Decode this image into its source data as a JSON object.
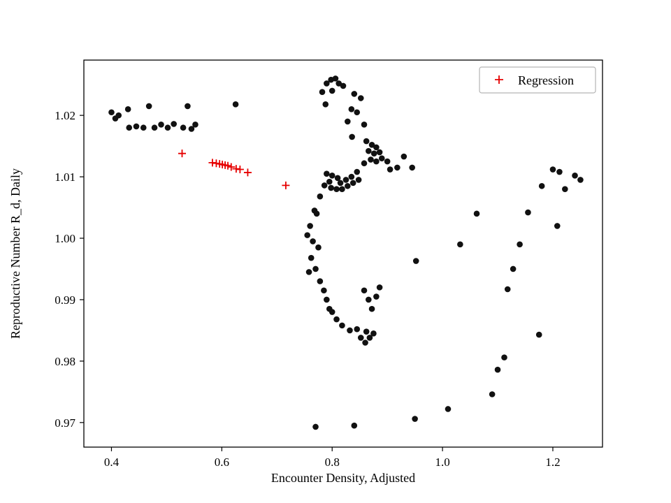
{
  "chart_data": {
    "type": "scatter",
    "title": "",
    "xlabel": "Encounter Density, Adjusted",
    "ylabel": "Reproductive Number R_d, Daily",
    "xlim": [
      0.35,
      1.29
    ],
    "ylim": [
      0.966,
      1.029
    ],
    "grid": false,
    "x_ticks": [
      0.4,
      0.6,
      0.8,
      1.0,
      1.2
    ],
    "x_tick_labels": [
      "0.4",
      "0.6",
      "0.8",
      "1.0",
      "1.2"
    ],
    "y_ticks": [
      0.97,
      0.98,
      0.99,
      1.0,
      1.01,
      1.02
    ],
    "y_tick_labels": [
      "0.97",
      "0.98",
      "0.99",
      "1.00",
      "1.01",
      "1.02"
    ],
    "legend": {
      "position": "upper right",
      "entries": [
        {
          "label": "Regression",
          "marker": "plus",
          "color": "#e60000"
        }
      ]
    },
    "colors": {
      "scatter": "#111111",
      "regression": "#e60000",
      "axis": "#000000",
      "legend_border": "#b3b3b3"
    },
    "series": [
      {
        "name": "data",
        "marker": "circle",
        "color": "#111111",
        "points": [
          [
            0.4,
            1.0205
          ],
          [
            0.407,
            1.0195
          ],
          [
            0.413,
            1.02
          ],
          [
            0.43,
            1.021
          ],
          [
            0.432,
            1.018
          ],
          [
            0.445,
            1.0182
          ],
          [
            0.458,
            1.018
          ],
          [
            0.468,
            1.0215
          ],
          [
            0.478,
            1.018
          ],
          [
            0.49,
            1.0185
          ],
          [
            0.502,
            1.018
          ],
          [
            0.513,
            1.0186
          ],
          [
            0.53,
            1.018
          ],
          [
            0.538,
            1.0215
          ],
          [
            0.545,
            1.0178
          ],
          [
            0.552,
            1.0185
          ],
          [
            0.625,
            1.0218
          ],
          [
            0.782,
            1.0238
          ],
          [
            0.788,
            1.0218
          ],
          [
            0.79,
            1.0252
          ],
          [
            0.798,
            1.0258
          ],
          [
            0.806,
            1.026
          ],
          [
            0.812,
            1.0252
          ],
          [
            0.8,
            1.024
          ],
          [
            0.82,
            1.0248
          ],
          [
            0.84,
            1.0235
          ],
          [
            0.852,
            1.0228
          ],
          [
            0.835,
            1.021
          ],
          [
            0.845,
            1.0205
          ],
          [
            0.828,
            1.019
          ],
          [
            0.858,
            1.0185
          ],
          [
            0.836,
            1.0165
          ],
          [
            0.862,
            1.0158
          ],
          [
            0.872,
            1.0152
          ],
          [
            0.88,
            1.0148
          ],
          [
            0.866,
            1.0142
          ],
          [
            0.876,
            1.0138
          ],
          [
            0.886,
            1.014
          ],
          [
            0.87,
            1.0128
          ],
          [
            0.88,
            1.0125
          ],
          [
            0.89,
            1.013
          ],
          [
            0.9,
            1.0125
          ],
          [
            0.858,
            1.0122
          ],
          [
            0.918,
            1.0115
          ],
          [
            0.905,
            1.0112
          ],
          [
            0.93,
            1.0133
          ],
          [
            0.945,
            1.0115
          ],
          [
            0.79,
            1.0105
          ],
          [
            0.8,
            1.0102
          ],
          [
            0.81,
            1.0098
          ],
          [
            0.795,
            1.0092
          ],
          [
            0.786,
            1.0086
          ],
          [
            0.798,
            1.0082
          ],
          [
            0.808,
            1.008
          ],
          [
            0.818,
            1.008
          ],
          [
            0.828,
            1.0085
          ],
          [
            0.838,
            1.009
          ],
          [
            0.848,
            1.0095
          ],
          [
            0.825,
            1.0095
          ],
          [
            0.835,
            1.01
          ],
          [
            0.815,
            1.009
          ],
          [
            0.845,
            1.0108
          ],
          [
            0.778,
            1.0068
          ],
          [
            0.768,
            1.0045
          ],
          [
            0.772,
            1.004
          ],
          [
            0.76,
            1.002
          ],
          [
            0.755,
            1.0005
          ],
          [
            0.765,
            0.9995
          ],
          [
            0.775,
            0.9985
          ],
          [
            0.762,
            0.9968
          ],
          [
            0.758,
            0.9945
          ],
          [
            0.77,
            0.995
          ],
          [
            0.778,
            0.993
          ],
          [
            0.785,
            0.9915
          ],
          [
            0.79,
            0.99
          ],
          [
            0.795,
            0.9885
          ],
          [
            0.8,
            0.988
          ],
          [
            0.808,
            0.9868
          ],
          [
            0.818,
            0.9858
          ],
          [
            0.832,
            0.985
          ],
          [
            0.845,
            0.9852
          ],
          [
            0.852,
            0.9838
          ],
          [
            0.86,
            0.983
          ],
          [
            0.868,
            0.9838
          ],
          [
            0.875,
            0.9845
          ],
          [
            0.862,
            0.9848
          ],
          [
            0.872,
            0.9885
          ],
          [
            0.866,
            0.99
          ],
          [
            0.858,
            0.9915
          ],
          [
            0.88,
            0.9905
          ],
          [
            0.886,
            0.992
          ],
          [
            0.77,
            0.9693
          ],
          [
            0.84,
            0.9695
          ],
          [
            0.95,
            0.9706
          ],
          [
            1.01,
            0.9722
          ],
          [
            1.09,
            0.9746
          ],
          [
            1.1,
            0.9786
          ],
          [
            1.112,
            0.9806
          ],
          [
            1.118,
            0.9917
          ],
          [
            1.128,
            0.995
          ],
          [
            1.14,
            0.999
          ],
          [
            1.155,
            1.0042
          ],
          [
            1.18,
            1.0085
          ],
          [
            1.2,
            1.0112
          ],
          [
            1.212,
            1.0108
          ],
          [
            1.222,
            1.008
          ],
          [
            1.24,
            1.0102
          ],
          [
            1.25,
            1.0095
          ],
          [
            1.208,
            1.002
          ],
          [
            1.175,
            0.9843
          ],
          [
            1.062,
            1.004
          ],
          [
            1.032,
            0.999
          ],
          [
            0.952,
            0.9963
          ]
        ]
      },
      {
        "name": "Regression",
        "marker": "plus",
        "color": "#e60000",
        "points": [
          [
            0.528,
            1.0138
          ],
          [
            0.583,
            1.0123
          ],
          [
            0.59,
            1.0122
          ],
          [
            0.596,
            1.0121
          ],
          [
            0.601,
            1.012
          ],
          [
            0.606,
            1.0119
          ],
          [
            0.611,
            1.0118
          ],
          [
            0.617,
            1.0116
          ],
          [
            0.626,
            1.0113
          ],
          [
            0.633,
            1.0112
          ],
          [
            0.647,
            1.0107
          ],
          [
            0.716,
            1.0086
          ]
        ]
      }
    ]
  }
}
